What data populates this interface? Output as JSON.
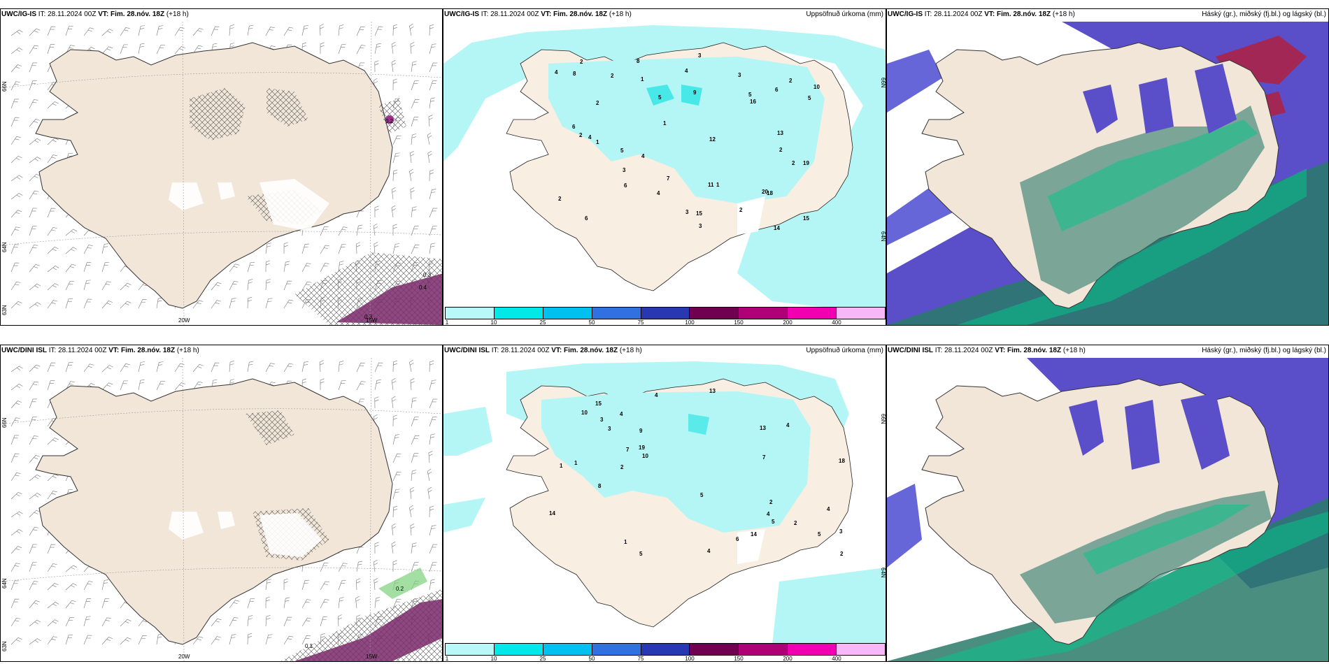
{
  "panels": {
    "p1": {
      "model": "UWC/IG-IS",
      "it": "IT: 28.11.2024 00Z",
      "vt_label": "VT:",
      "vt": "Fim. 28.nóv. 18Z",
      "lead": "(+18 h)",
      "labels": {
        "lat66": "66N",
        "lat64": "64N",
        "lat63": "63N",
        "lon20": "20W",
        "lon15": "15W",
        "c1": "0.2",
        "c2": "0.3",
        "c3": "0.4",
        "c4": "0.3"
      }
    },
    "p2": {
      "model": "UWC/IG-IS",
      "it": "IT: 28.11.2024 00Z",
      "vt_label": "VT:",
      "vt": "Fim. 28.nóv. 18Z",
      "lead": "(+18 h)",
      "title": "Uppsöfnuð úrkoma (mm)",
      "labels": {
        "lat66": "66N",
        "lat64": "64N"
      },
      "numbers": [
        "1",
        "2",
        "2",
        "2",
        "2",
        "1",
        "4",
        "5",
        "6",
        "3",
        "4",
        "13",
        "15",
        "18",
        "19",
        "14",
        "9",
        "20",
        "12",
        "10",
        "16",
        "11",
        "8",
        "6",
        "8",
        "4",
        "5",
        "15",
        "7",
        "3",
        "4",
        "6",
        "2",
        "1",
        "3",
        "5",
        "5",
        "2",
        "3",
        "3",
        "2",
        "6",
        "4",
        "2",
        "2",
        "1"
      ]
    },
    "p3": {
      "model": "UWC/IG-IS",
      "it": "IT: 28.11.2024 00Z",
      "vt_label": "VT:",
      "vt": "Fim. 28.nóv. 18Z",
      "lead": "(+18 h)",
      "title": "Háský (gr.), miðský (fj.bl.) og lágský (bl.)"
    },
    "p4": {
      "model": "UWC/DINI ISL",
      "it": "IT: 28.11.2024 00Z",
      "vt_label": "VT:",
      "vt": "Fim. 28.nóv. 18Z",
      "lead": "(+18 h)",
      "labels": {
        "lat66": "66N",
        "lat64": "64N",
        "lat63": "63N",
        "lon20": "20W",
        "lon15": "15W",
        "c1": "0.2",
        "c2": "0.1"
      }
    },
    "p5": {
      "model": "UWC/DINI ISL",
      "it": "IT: 28.11.2024 00Z",
      "vt_label": "VT:",
      "vt": "Fim. 28.nóv. 18Z",
      "lead": "(+18 h)",
      "title": "Uppsöfnuð úrkoma (mm)",
      "labels": {
        "lat66": "66N",
        "lat64": "64N"
      },
      "numbers": [
        "1",
        "4",
        "2",
        "3",
        "4",
        "5",
        "9",
        "10",
        "13",
        "18",
        "19",
        "14",
        "13",
        "15",
        "5",
        "10",
        "14",
        "7",
        "6",
        "8",
        "4",
        "2",
        "2",
        "5",
        "2",
        "4",
        "7",
        "3",
        "4",
        "5",
        "1",
        "4",
        "3",
        "1"
      ]
    },
    "p6": {
      "model": "UWC/DINI ISL",
      "it": "IT: 28.11.2024 00Z",
      "vt_label": "VT:",
      "vt": "Fim. 28.nóv. 18Z",
      "lead": "(+18 h)",
      "title": "Háský (gr.), miðský (fj.bl.) og lágský (bl.)"
    }
  },
  "colorbar": {
    "ticks": [
      "1",
      "10",
      "25",
      "50",
      "75",
      "100",
      "150",
      "200",
      "400"
    ],
    "colors": [
      "#b8f8f8",
      "#00e8e8",
      "#00c0f0",
      "#3070e0",
      "#2838b0",
      "#700050",
      "#b00078",
      "#f000b0",
      "#f8b8f8"
    ]
  },
  "colors": {
    "land": "#f2e6d9",
    "precip": "#b4f5f5",
    "high": "#5a4fc8",
    "low": "#2a8a6a",
    "mid": "#00cc88"
  }
}
